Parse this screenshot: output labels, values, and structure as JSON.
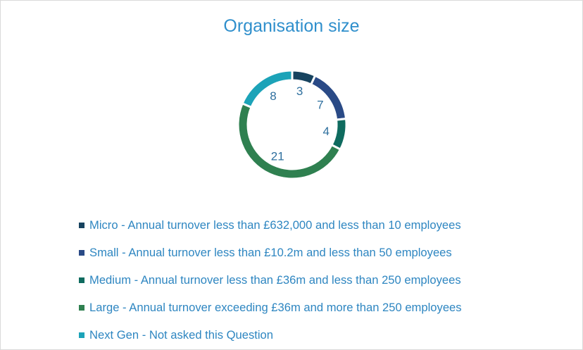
{
  "chart_data": {
    "type": "pie",
    "variant": "donut",
    "title": "Organisation size",
    "categories": [
      "Micro - Annual turnover less than £632,000 and less than 10 employees",
      "Small - Annual turnover less than £10.2m and less than 50 employees",
      "Medium - Annual turnover less than £36m and less than 250 employees",
      "Large - Annual turnover exceeding £36m and more than 250 employees",
      "Next Gen - Not asked this Question"
    ],
    "values": [
      3,
      7,
      4,
      21,
      8
    ],
    "data_labels": [
      "3",
      "7",
      "4",
      "21",
      "8"
    ],
    "colors": [
      "#17435f",
      "#2a4a86",
      "#0f6b5f",
      "#2f8050",
      "#1ca3b8"
    ],
    "label_color": "#2e6f9e",
    "legend_position": "bottom"
  }
}
